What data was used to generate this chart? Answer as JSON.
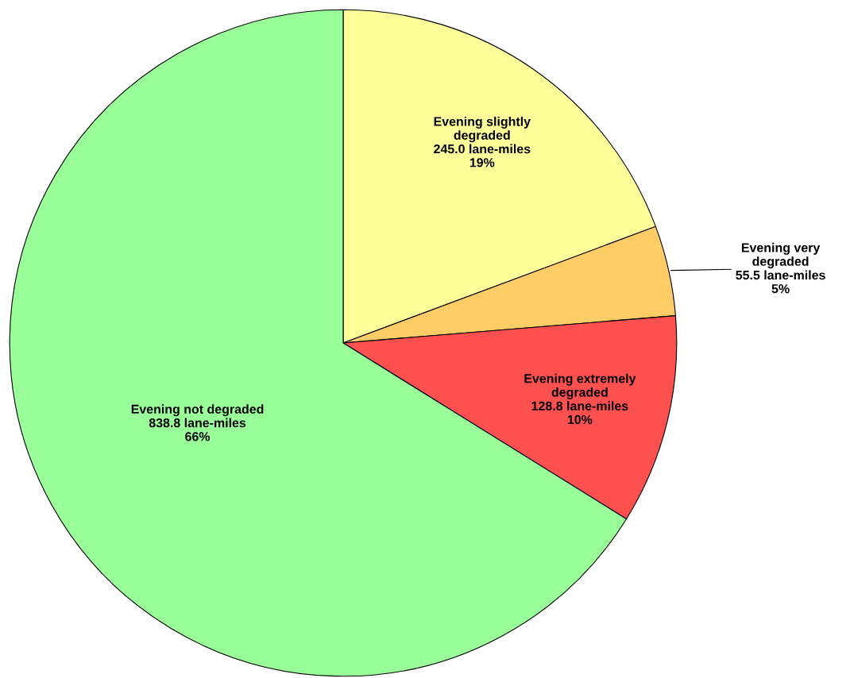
{
  "chart_data": {
    "type": "pie",
    "categories": [
      "Evening slightly degraded",
      "Evening very degraded",
      "Evening extremely degraded",
      "Evening not degraded"
    ],
    "values": [
      245.0,
      55.5,
      128.8,
      838.8
    ],
    "value_labels": [
      "245.0 lane-miles\n19%",
      "55.5 lane-miles\n5%",
      "128.8 lane-miles\n10%",
      "838.8 lane-miles\n66%"
    ],
    "colors": [
      "#ffff99",
      "#ffcc66",
      "#ff5050",
      "#99ff99"
    ]
  }
}
